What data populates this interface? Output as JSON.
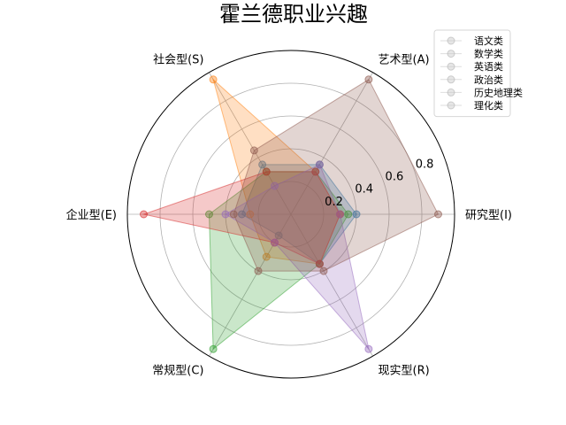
{
  "chart_data": {
    "type": "radar",
    "title": "霍兰德职业兴趣",
    "axes": [
      "现实型(R)",
      "研究型(I)",
      "艺术型(A)",
      "社会型(S)",
      "企业型(E)",
      "常规型(C)"
    ],
    "rlim": [
      0,
      1.0
    ],
    "rticks": [
      0.2,
      0.4,
      0.6,
      0.8
    ],
    "grid": true,
    "legend_position": "top-right",
    "series": [
      {
        "name": "语文类",
        "color": "#1f77b4",
        "values": [
          0.35,
          0.4,
          0.35,
          0.35,
          0.3,
          0.15
        ]
      },
      {
        "name": "数学类",
        "color": "#ff7f0e",
        "values": [
          0.35,
          0.3,
          0.3,
          0.95,
          0.25,
          0.3
        ]
      },
      {
        "name": "英语类",
        "color": "#2ca02c",
        "values": [
          0.35,
          0.35,
          0.3,
          0.3,
          0.5,
          0.95
        ]
      },
      {
        "name": "政治类",
        "color": "#d62728",
        "values": [
          0.35,
          0.3,
          0.3,
          0.3,
          0.9,
          0.2
        ]
      },
      {
        "name": "历史地理类",
        "color": "#9467bd",
        "values": [
          0.95,
          0.3,
          0.35,
          0.2,
          0.4,
          0.2
        ]
      },
      {
        "name": "理化类",
        "color": "#8c564b",
        "values": [
          0.4,
          0.9,
          0.95,
          0.45,
          0.35,
          0.4
        ]
      }
    ]
  }
}
